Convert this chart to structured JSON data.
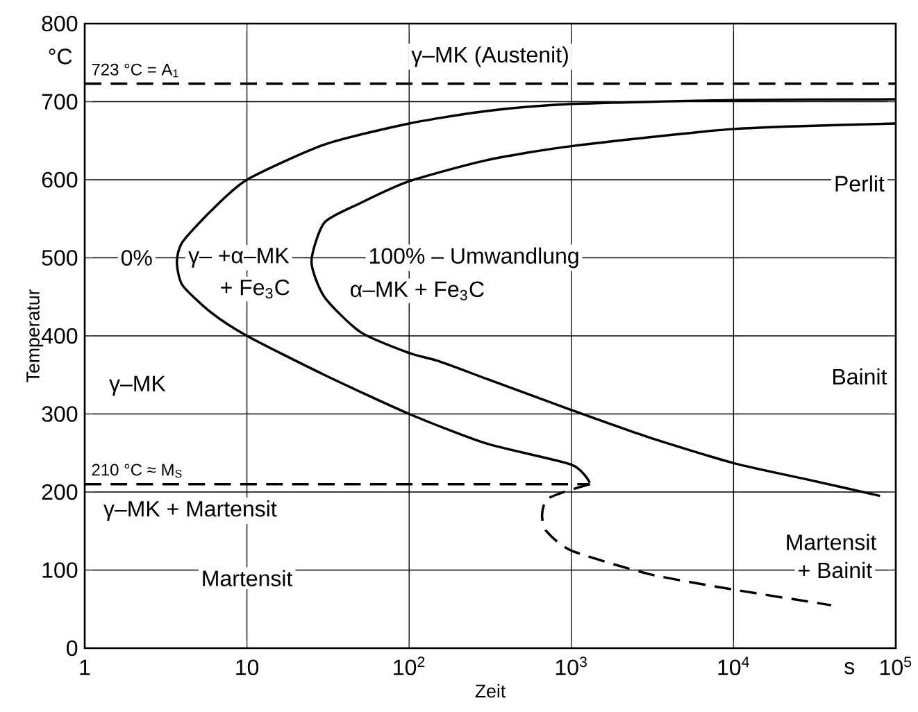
{
  "chart_data": {
    "type": "line",
    "xlabel": "Zeit",
    "ylabel": "Temperatur",
    "log": "x",
    "grid": true,
    "marker": "none",
    "xlim": [
      1,
      100000
    ],
    "ylim": [
      0,
      800
    ],
    "xticks": [
      1,
      10,
      {
        "value": 100,
        "label": "10$^{2}$"
      },
      {
        "value": 1000,
        "label": "10$^{3}$"
      },
      {
        "value": 10000,
        "label": "10$^{4}$"
      },
      {
        "value": 100000,
        "label": "10$^{5}$"
      }
    ],
    "yticks": [
      0,
      100,
      200,
      300,
      400,
      500,
      600,
      700,
      800
    ],
    "series": [
      {
        "color": "#000000",
        "line_style": "solid",
        "x": [
          100000,
          10000,
          1000,
          300,
          100,
          30,
          10,
          6,
          4,
          3.7,
          4,
          6,
          10,
          30,
          100,
          300,
          1000,
          1300
        ],
        "values": [
          703,
          702,
          697,
          688,
          672,
          645,
          600,
          560,
          520,
          495,
          465,
          430,
          400,
          350,
          300,
          262,
          235,
          212
        ]
      },
      {
        "color": "#000000",
        "line_style": "solid",
        "x": [
          100000,
          10000,
          1000,
          300,
          100,
          50,
          30,
          25,
          30,
          50,
          100,
          150,
          300,
          1000,
          3000,
          10000,
          30000,
          80000
        ],
        "values": [
          672,
          665,
          643,
          625,
          598,
          570,
          545,
          495,
          450,
          405,
          378,
          368,
          345,
          305,
          270,
          237,
          215,
          195
        ]
      },
      {
        "color": "#000000",
        "line_style": "dashed",
        "x": [
          1300,
          900,
          700,
          660,
          700,
          1000,
          3000,
          10000,
          40000
        ],
        "values": [
          210,
          200,
          190,
          170,
          150,
          125,
          95,
          75,
          55
        ]
      },
      {
        "name": "210 °C ≈ M$_{S}$",
        "color": "#000000",
        "line_style": "dashed",
        "x": [
          1,
          1300
        ],
        "values": [
          210,
          210
        ]
      }
    ],
    "ref_lines": [
      {
        "axis": "y",
        "value": 723,
        "label": "723 °C = A$_{1}$",
        "line_style": "dashed"
      }
    ],
    "annotations": [
      "°C",
      "s",
      "γ–MK (Austenit)",
      "Perlit",
      "Bainit",
      "0%",
      "γ–   +α–MK",
      "+ Fe$_{3}$C",
      "100% – Umwandlung",
      "α–MK + Fe$_{3}$C",
      "γ–MK",
      "γ–MK + Martensit",
      "Martensit",
      "Martensit",
      "+ Bainit"
    ]
  }
}
